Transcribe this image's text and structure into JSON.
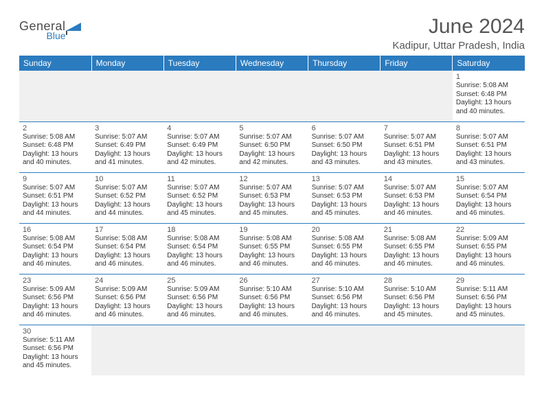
{
  "logo": {
    "text1": "General",
    "text2": "Blue"
  },
  "title": "June 2024",
  "location": "Kadipur, Uttar Pradesh, India",
  "colors": {
    "header_bg": "#2b7bbf",
    "header_text": "#ffffff",
    "grid_border": "#2b7bbf",
    "page_bg": "#ffffff",
    "text": "#333333",
    "muted": "#555555",
    "empty_bg": "#f0f0f0"
  },
  "day_headers": [
    "Sunday",
    "Monday",
    "Tuesday",
    "Wednesday",
    "Thursday",
    "Friday",
    "Saturday"
  ],
  "weeks": [
    [
      null,
      null,
      null,
      null,
      null,
      null,
      {
        "n": "1",
        "rise": "5:08 AM",
        "set": "6:48 PM",
        "dh": "13",
        "dm": "40"
      }
    ],
    [
      {
        "n": "2",
        "rise": "5:08 AM",
        "set": "6:48 PM",
        "dh": "13",
        "dm": "40"
      },
      {
        "n": "3",
        "rise": "5:07 AM",
        "set": "6:49 PM",
        "dh": "13",
        "dm": "41"
      },
      {
        "n": "4",
        "rise": "5:07 AM",
        "set": "6:49 PM",
        "dh": "13",
        "dm": "42"
      },
      {
        "n": "5",
        "rise": "5:07 AM",
        "set": "6:50 PM",
        "dh": "13",
        "dm": "42"
      },
      {
        "n": "6",
        "rise": "5:07 AM",
        "set": "6:50 PM",
        "dh": "13",
        "dm": "43"
      },
      {
        "n": "7",
        "rise": "5:07 AM",
        "set": "6:51 PM",
        "dh": "13",
        "dm": "43"
      },
      {
        "n": "8",
        "rise": "5:07 AM",
        "set": "6:51 PM",
        "dh": "13",
        "dm": "43"
      }
    ],
    [
      {
        "n": "9",
        "rise": "5:07 AM",
        "set": "6:51 PM",
        "dh": "13",
        "dm": "44"
      },
      {
        "n": "10",
        "rise": "5:07 AM",
        "set": "6:52 PM",
        "dh": "13",
        "dm": "44"
      },
      {
        "n": "11",
        "rise": "5:07 AM",
        "set": "6:52 PM",
        "dh": "13",
        "dm": "45"
      },
      {
        "n": "12",
        "rise": "5:07 AM",
        "set": "6:53 PM",
        "dh": "13",
        "dm": "45"
      },
      {
        "n": "13",
        "rise": "5:07 AM",
        "set": "6:53 PM",
        "dh": "13",
        "dm": "45"
      },
      {
        "n": "14",
        "rise": "5:07 AM",
        "set": "6:53 PM",
        "dh": "13",
        "dm": "46"
      },
      {
        "n": "15",
        "rise": "5:07 AM",
        "set": "6:54 PM",
        "dh": "13",
        "dm": "46"
      }
    ],
    [
      {
        "n": "16",
        "rise": "5:08 AM",
        "set": "6:54 PM",
        "dh": "13",
        "dm": "46"
      },
      {
        "n": "17",
        "rise": "5:08 AM",
        "set": "6:54 PM",
        "dh": "13",
        "dm": "46"
      },
      {
        "n": "18",
        "rise": "5:08 AM",
        "set": "6:54 PM",
        "dh": "13",
        "dm": "46"
      },
      {
        "n": "19",
        "rise": "5:08 AM",
        "set": "6:55 PM",
        "dh": "13",
        "dm": "46"
      },
      {
        "n": "20",
        "rise": "5:08 AM",
        "set": "6:55 PM",
        "dh": "13",
        "dm": "46"
      },
      {
        "n": "21",
        "rise": "5:08 AM",
        "set": "6:55 PM",
        "dh": "13",
        "dm": "46"
      },
      {
        "n": "22",
        "rise": "5:09 AM",
        "set": "6:55 PM",
        "dh": "13",
        "dm": "46"
      }
    ],
    [
      {
        "n": "23",
        "rise": "5:09 AM",
        "set": "6:56 PM",
        "dh": "13",
        "dm": "46"
      },
      {
        "n": "24",
        "rise": "5:09 AM",
        "set": "6:56 PM",
        "dh": "13",
        "dm": "46"
      },
      {
        "n": "25",
        "rise": "5:09 AM",
        "set": "6:56 PM",
        "dh": "13",
        "dm": "46"
      },
      {
        "n": "26",
        "rise": "5:10 AM",
        "set": "6:56 PM",
        "dh": "13",
        "dm": "46"
      },
      {
        "n": "27",
        "rise": "5:10 AM",
        "set": "6:56 PM",
        "dh": "13",
        "dm": "46"
      },
      {
        "n": "28",
        "rise": "5:10 AM",
        "set": "6:56 PM",
        "dh": "13",
        "dm": "45"
      },
      {
        "n": "29",
        "rise": "5:11 AM",
        "set": "6:56 PM",
        "dh": "13",
        "dm": "45"
      }
    ],
    [
      {
        "n": "30",
        "rise": "5:11 AM",
        "set": "6:56 PM",
        "dh": "13",
        "dm": "45"
      },
      null,
      null,
      null,
      null,
      null,
      null
    ]
  ],
  "labels": {
    "sunrise": "Sunrise: ",
    "sunset": "Sunset: ",
    "daylight_prefix": "Daylight: ",
    "hours_word": " hours",
    "and_word": "and ",
    "minutes_word": " minutes."
  }
}
